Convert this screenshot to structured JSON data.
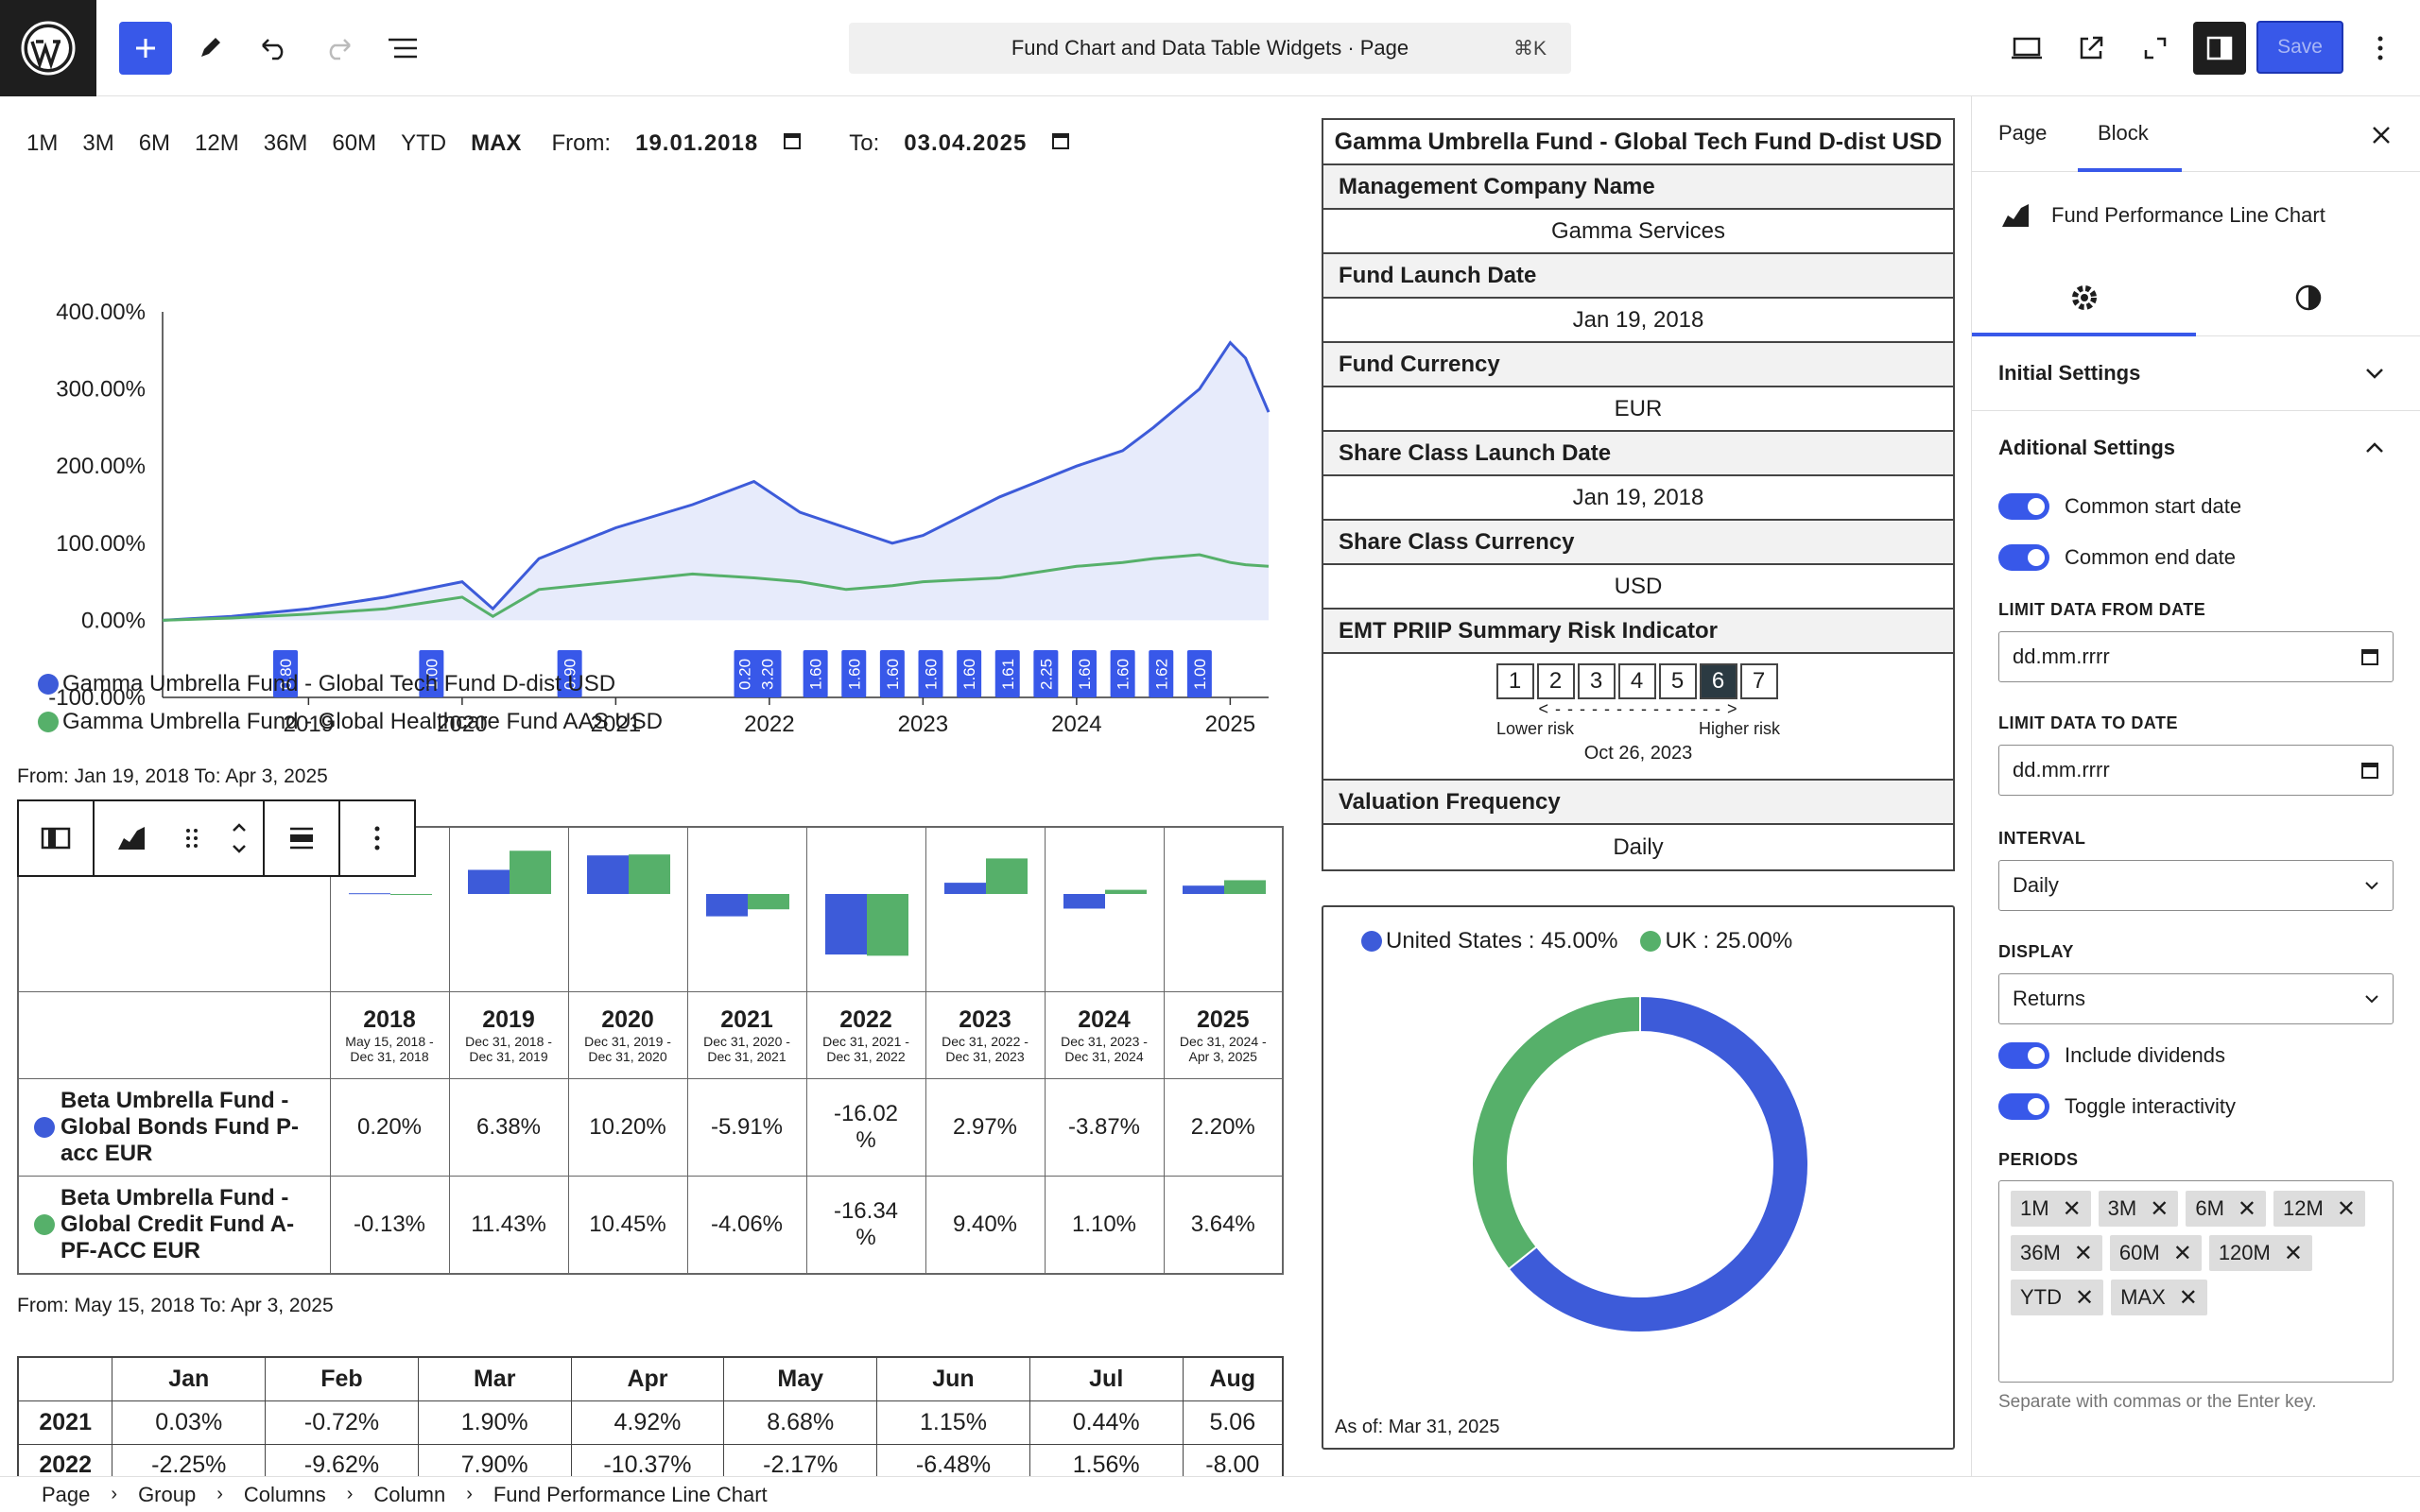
{
  "topbar": {
    "document_title": "Fund Chart and Data Table Widgets · Page",
    "shortcut": "⌘K",
    "save_label": "Save"
  },
  "chart_controls": {
    "periods": [
      "1M",
      "3M",
      "6M",
      "12M",
      "36M",
      "60M",
      "YTD",
      "MAX"
    ],
    "active_period": "MAX",
    "from_label": "From:",
    "from_value": "19.01.2018",
    "to_label": "To:",
    "to_value": "03.04.2025"
  },
  "line_chart": {
    "legend": [
      {
        "label": "Gamma Umbrella Fund - Global Tech Fund D-dist USD",
        "color": "#3d5bd9"
      },
      {
        "label": "Gamma Umbrella Fund - Global Healthcare Fund AAS USD",
        "color": "#56b06a"
      }
    ],
    "dividend_markers": [
      "0.80",
      "1.00",
      "0.90",
      "0.20",
      "3.20",
      "1.60",
      "1.60",
      "1.60",
      "1.60",
      "1.60",
      "1.61",
      "2.25",
      "1.60",
      "1.60",
      "1.62",
      "1.00"
    ]
  },
  "chart_data": [
    {
      "type": "line",
      "x": [
        2018.05,
        2018.5,
        2019.0,
        2019.5,
        2020.0,
        2020.2,
        2020.5,
        2021.0,
        2021.5,
        2021.9,
        2022.2,
        2022.5,
        2022.8,
        2023.0,
        2023.5,
        2024.0,
        2024.3,
        2024.5,
        2024.8,
        2025.0,
        2025.1,
        2025.25
      ],
      "series": [
        {
          "name": "Gamma Umbrella Fund - Global Tech Fund D-dist USD",
          "values": [
            0,
            5,
            15,
            30,
            50,
            15,
            80,
            120,
            150,
            180,
            140,
            120,
            100,
            110,
            160,
            200,
            220,
            250,
            300,
            360,
            340,
            270
          ]
        },
        {
          "name": "Gamma Umbrella Fund - Global Healthcare Fund AAS USD",
          "values": [
            0,
            3,
            8,
            15,
            30,
            5,
            40,
            50,
            60,
            55,
            50,
            40,
            45,
            50,
            55,
            70,
            75,
            80,
            85,
            75,
            72,
            70
          ]
        }
      ],
      "yticks": [
        "400.00%",
        "300.00%",
        "200.00%",
        "100.00%",
        "0.00%",
        "-100.00%"
      ],
      "xticks": [
        "2019",
        "2020",
        "2021",
        "2022",
        "2023",
        "2024",
        "2025"
      ],
      "ylim": [
        -100,
        400
      ]
    },
    {
      "type": "pie",
      "labels": [
        "United States",
        "UK"
      ],
      "values": [
        45.0,
        25.0
      ],
      "legend_text": [
        "United States : 45.00%",
        "UK : 25.00%"
      ]
    },
    {
      "type": "bar",
      "categories": [
        "2018",
        "2019",
        "2020",
        "2021",
        "2022",
        "2023",
        "2024",
        "2025"
      ],
      "series": [
        {
          "name": "Beta Umbrella Fund - Global Bonds Fund P-acc EUR",
          "values": [
            0.2,
            6.38,
            10.2,
            -5.91,
            -16.02,
            2.97,
            -3.87,
            2.2
          ]
        },
        {
          "name": "Beta Umbrella Fund - Global Credit Fund A-PF-ACC EUR",
          "values": [
            -0.13,
            11.43,
            10.45,
            -4.06,
            -16.34,
            9.4,
            1.1,
            3.64
          ]
        }
      ]
    }
  ],
  "line_from_to": "From: Jan 19, 2018 To: Apr 3, 2025",
  "returns_table": {
    "years": [
      {
        "year": "2018",
        "range": "May 15, 2018 - Dec 31, 2018"
      },
      {
        "year": "2019",
        "range": "Dec 31, 2018 - Dec 31, 2019"
      },
      {
        "year": "2020",
        "range": "Dec 31, 2019 - Dec 31, 2020"
      },
      {
        "year": "2021",
        "range": "Dec 31, 2020 - Dec 31, 2021"
      },
      {
        "year": "2022",
        "range": "Dec 31, 2021 - Dec 31, 2022"
      },
      {
        "year": "2023",
        "range": "Dec 31, 2022 - Dec 31, 2023"
      },
      {
        "year": "2024",
        "range": "Dec 31, 2023 - Dec 31, 2024"
      },
      {
        "year": "2025",
        "range": "Dec 31, 2024 - Apr 3, 2025"
      }
    ],
    "rows": [
      {
        "name": "Beta Umbrella Fund - Global Bonds Fund P-acc EUR",
        "color": "#3d5bd9",
        "values": [
          "0.20%",
          "6.38%",
          "10.20%",
          "-5.91%",
          "-16.02 %",
          "2.97%",
          "-3.87%",
          "2.20%"
        ]
      },
      {
        "name": "Beta Umbrella Fund - Global Credit Fund A-PF-ACC EUR",
        "color": "#56b06a",
        "values": [
          "-0.13%",
          "11.43%",
          "10.45%",
          "-4.06%",
          "-16.34 %",
          "9.40%",
          "1.10%",
          "3.64%"
        ]
      }
    ],
    "from_to": "From: May 15, 2018 To: Apr 3, 2025"
  },
  "monthly_table": {
    "headers": [
      "",
      "Jan",
      "Feb",
      "Mar",
      "Apr",
      "May",
      "Jun",
      "Jul",
      "Aug"
    ],
    "rows": [
      [
        "2021",
        "0.03%",
        "-0.72%",
        "1.90%",
        "4.92%",
        "8.68%",
        "1.15%",
        "0.44%",
        "5.06"
      ],
      [
        "2022",
        "-2.25%",
        "-9.62%",
        "7.90%",
        "-10.37%",
        "-2.17%",
        "-6.48%",
        "1.56%",
        "-8.00"
      ]
    ]
  },
  "fund_info": {
    "title": "Gamma Umbrella Fund - Global Tech Fund D-dist USD",
    "rows": [
      {
        "label": "Management Company Name",
        "value": "Gamma Services"
      },
      {
        "label": "Fund Launch Date",
        "value": "Jan 19, 2018"
      },
      {
        "label": "Fund Currency",
        "value": "EUR"
      },
      {
        "label": "Share Class Launch Date",
        "value": "Jan 19, 2018"
      },
      {
        "label": "Share Class Currency",
        "value": "USD"
      }
    ],
    "risk_label": "EMT PRIIP Summary Risk Indicator",
    "risk_levels": [
      "1",
      "2",
      "3",
      "4",
      "5",
      "6",
      "7"
    ],
    "risk_selected": 6,
    "risk_arrow": "< - - - - - - - - - - - - - - >",
    "lower_risk": "Lower risk",
    "higher_risk": "Higher risk",
    "risk_date": "Oct 26, 2023",
    "valuation_label": "Valuation Frequency",
    "valuation_value": "Daily"
  },
  "donut": {
    "as_of": "As of: Mar 31, 2025",
    "colors": [
      "#3d5bd9",
      "#56b06a"
    ]
  },
  "right_panel": {
    "tabs": [
      "Page",
      "Block"
    ],
    "block_name": "Fund Performance Line Chart",
    "sections": [
      "Initial Settings",
      "Aditional Settings"
    ],
    "toggles": [
      "Common start date",
      "Common end date",
      "Include dividends",
      "Toggle interactivity"
    ],
    "limit_from_label": "LIMIT DATA FROM DATE",
    "limit_from_placeholder": "dd.mm.rrrr",
    "limit_to_label": "LIMIT DATA TO DATE",
    "limit_to_placeholder": "dd.mm.rrrr",
    "interval_label": "INTERVAL",
    "interval_value": "Daily",
    "display_label": "DISPLAY",
    "display_value": "Returns",
    "periods_label": "PERIODS",
    "period_tokens": [
      "1M",
      "3M",
      "6M",
      "12M",
      "36M",
      "60M",
      "120M",
      "YTD",
      "MAX"
    ],
    "periods_help": "Separate with commas or the Enter key."
  },
  "breadcrumb": [
    "Page",
    "Group",
    "Columns",
    "Column",
    "Fund Performance Line Chart"
  ]
}
